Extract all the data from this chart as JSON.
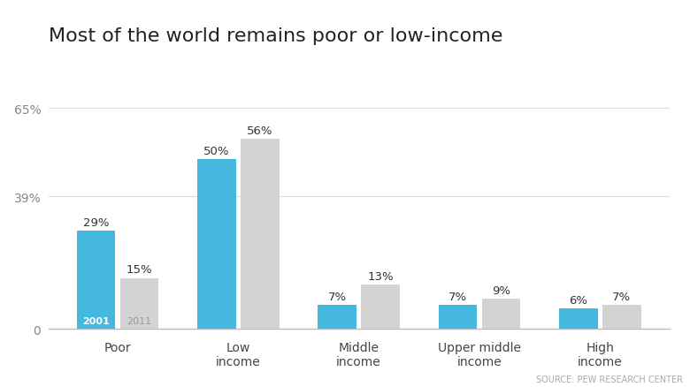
{
  "title": "Most of the world remains poor or low-income",
  "categories": [
    "Poor",
    "Low\nincome",
    "Middle\nincome",
    "Upper middle\nincome",
    "High\nincome"
  ],
  "values_2001": [
    29,
    50,
    7,
    7,
    6
  ],
  "values_2011": [
    15,
    56,
    13,
    9,
    7
  ],
  "color_2001": "#45b8e0",
  "color_2011": "#d3d3d3",
  "label_2001": "2001",
  "label_2011": "2011",
  "yticks": [
    0,
    39,
    65
  ],
  "ylim": [
    0,
    72
  ],
  "source_text": "SOURCE: PEW RESEARCH CENTER",
  "background_color": "#ffffff",
  "title_fontsize": 16,
  "bar_width": 0.32,
  "bar_gap": 0.04
}
